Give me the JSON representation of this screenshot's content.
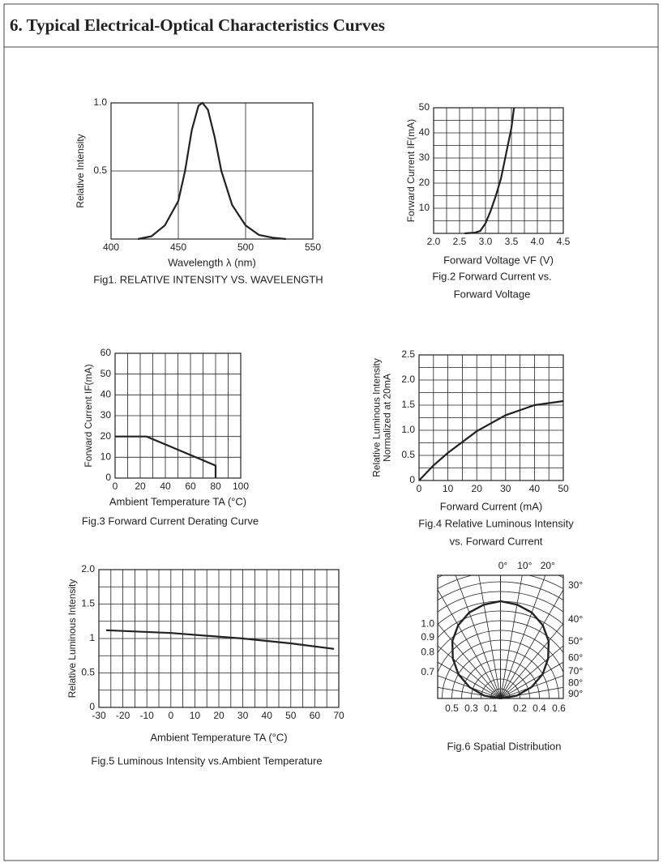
{
  "header": {
    "title": "6. Typical Electrical-Optical Characteristics Curves"
  },
  "chart_data": [
    {
      "type": "line",
      "y_label": "Relative Intensity",
      "x_label": "Wavelength λ (nm)",
      "caption": [
        "Fig1. RELATIVE INTENSITY VS. WAVELENGTH"
      ],
      "xlim": [
        400,
        550
      ],
      "xticks": [
        400,
        450,
        500,
        550
      ],
      "ylim": [
        0,
        1
      ],
      "yticks": [
        0.5,
        {
          "value": 1,
          "label": "1.0"
        }
      ],
      "grid_step": {
        "x": 50,
        "y": 0.5
      },
      "color": "#222222",
      "x": [
        420,
        430,
        440,
        450,
        455,
        460,
        465,
        468,
        472,
        477,
        482,
        490,
        500,
        510,
        520,
        530
      ],
      "values": [
        0,
        0.02,
        0.1,
        0.28,
        0.5,
        0.8,
        0.98,
        1,
        0.95,
        0.75,
        0.5,
        0.25,
        0.1,
        0.03,
        0.01,
        0
      ]
    },
    {
      "type": "line",
      "y_label": "Forward Current IF(mA)",
      "x_label": "Forward Voltage VF (V)",
      "caption": [
        "Fig.2 Forward Current vs.",
        "Forward Voltage"
      ],
      "xlim": [
        2,
        4.5
      ],
      "xticks": [
        {
          "value": 2,
          "label": "2.0"
        },
        2.5,
        {
          "value": 3,
          "label": "3.0"
        },
        3.5,
        {
          "value": 4,
          "label": "4.0"
        },
        4.5
      ],
      "ylim": [
        0,
        50
      ],
      "yticks": [
        10,
        20,
        30,
        40,
        50
      ],
      "grid_step": {
        "x": 0.25,
        "y": 5
      },
      "color": "#222222",
      "x": [
        2.6,
        2.8,
        2.9,
        3.0,
        3.1,
        3.2,
        3.3,
        3.4,
        3.5,
        3.55
      ],
      "values": [
        0,
        0.3,
        1,
        4,
        9,
        15,
        22,
        32,
        42,
        50
      ]
    },
    {
      "type": "line",
      "y_label": "Forward Current IF(mA)",
      "x_label": "Ambient Temperature TA (°C)",
      "caption": [
        "Fig.3 Forward Current Derating Curve"
      ],
      "xlim": [
        0,
        100
      ],
      "xticks": [
        0,
        20,
        40,
        60,
        80,
        100
      ],
      "ylim": [
        0,
        60
      ],
      "yticks": [
        0,
        10,
        20,
        30,
        40,
        50,
        60
      ],
      "grid_step": {
        "x": 10,
        "y": 10
      },
      "color": "#222222",
      "x": [
        0,
        25,
        80,
        80
      ],
      "values": [
        20,
        20,
        6,
        0
      ]
    },
    {
      "type": "line",
      "y_label": [
        "Relative Luminous Intensity",
        "Normalized at 20mA"
      ],
      "x_label": "Forward Current (mA)",
      "caption": [
        "Fig.4 Relative Luminous Intensity",
        "vs. Forward Current"
      ],
      "xlim": [
        0,
        50
      ],
      "xticks": [
        0,
        10,
        20,
        30,
        40,
        50
      ],
      "ylim": [
        0,
        2.5
      ],
      "yticks": [
        0,
        0.5,
        {
          "value": 1,
          "label": "1.0"
        },
        1.5,
        {
          "value": 2,
          "label": "2.0"
        },
        2.5
      ],
      "grid_step": {
        "x": 5,
        "y": 0.25
      },
      "color": "#222222",
      "x": [
        0,
        5,
        10,
        20,
        30,
        40,
        50
      ],
      "values": [
        0,
        0.3,
        0.55,
        0.98,
        1.3,
        1.5,
        1.58
      ]
    },
    {
      "type": "line",
      "y_label": "Relative Luminous Intensity",
      "x_label": "Ambient Temperature TA (°C)",
      "caption": [
        "Fig.5 Luminous Intensity vs.Ambient Temperature"
      ],
      "xlim": [
        -30,
        70
      ],
      "xticks": [
        -30,
        -20,
        -10,
        0,
        10,
        20,
        30,
        40,
        50,
        60,
        70
      ],
      "ylim": [
        0,
        2
      ],
      "yticks": [
        0,
        0.5,
        1,
        1.5,
        {
          "value": 2,
          "label": "2.0"
        }
      ],
      "grid_step": {
        "x": 5,
        "y": 0.25
      },
      "color": "#222222",
      "x": [
        -27,
        0,
        30,
        50,
        68
      ],
      "values": [
        1.12,
        1.08,
        1.0,
        0.93,
        0.85
      ]
    },
    {
      "type": "polar",
      "caption": [
        "Fig.6 Spatial Distribution"
      ],
      "color": "#222222",
      "r_grid_step": 0.1,
      "angle_ticks": [
        {
          "value": 0,
          "label": "0°"
        },
        {
          "value": 10,
          "label": "10°"
        },
        {
          "value": 20,
          "label": "20°"
        },
        {
          "value": 30,
          "label": "30°"
        },
        {
          "value": 40,
          "label": "40°"
        },
        {
          "value": 50,
          "label": "50°"
        },
        {
          "value": 60,
          "label": "60°"
        },
        {
          "value": 70,
          "label": "70°"
        },
        {
          "value": 80,
          "label": "80°"
        },
        {
          "value": 90,
          "label": "90°"
        }
      ],
      "r_ticks_left": [
        {
          "value": 1,
          "label": "1.0"
        },
        0.9,
        0.8,
        0.7
      ],
      "r_ticks_bottom": [
        {
          "value": -0.5,
          "label": "0.5"
        },
        {
          "value": -0.3,
          "label": "0.3"
        },
        {
          "value": -0.1,
          "label": "0.1"
        },
        0.2,
        0.4,
        0.6
      ],
      "theta": [
        -90,
        -80,
        -70,
        -60,
        -50,
        -40,
        -30,
        -20,
        -10,
        0,
        10,
        20,
        30,
        40,
        50,
        60,
        70,
        80,
        90
      ],
      "values": [
        0,
        0.17,
        0.34,
        0.5,
        0.64,
        0.77,
        0.87,
        0.94,
        0.98,
        1,
        0.98,
        0.94,
        0.87,
        0.77,
        0.64,
        0.5,
        0.34,
        0.17,
        0
      ]
    }
  ]
}
